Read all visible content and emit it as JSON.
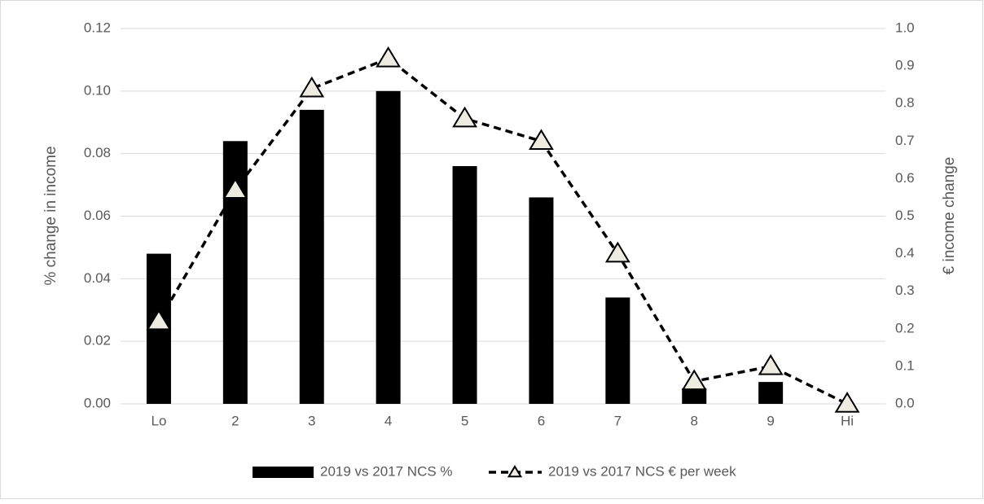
{
  "chart_data": {
    "type": "bar_line",
    "categories": [
      "Lo",
      "2",
      "3",
      "4",
      "5",
      "6",
      "7",
      "8",
      "9",
      "Hi"
    ],
    "y_label": "% change in income",
    "y2_label": "€ income change",
    "ylim": [
      0,
      0.12
    ],
    "yticks": [
      {
        "value": 0,
        "label": "0.00"
      },
      0.02,
      0.04,
      0.06,
      0.08,
      {
        "value": 0.1,
        "label": "0.10"
      },
      0.12
    ],
    "y2lim": [
      0,
      1.0
    ],
    "y2ticks": [
      {
        "value": 0,
        "label": "0.0"
      },
      0.1,
      0.2,
      0.3,
      0.4,
      0.5,
      0.6,
      0.7,
      0.8,
      0.9,
      {
        "value": 1,
        "label": "1.0"
      }
    ],
    "grid": true,
    "legend": "bottom",
    "series": [
      {
        "name": "2019 vs 2017 NCS %",
        "type": "bar",
        "color": "#000000",
        "values": [
          0.048,
          0.084,
          0.094,
          0.1,
          0.076,
          0.066,
          0.034,
          0.005,
          0.007,
          0
        ]
      },
      {
        "name": "2019 vs 2017 NCS € per week",
        "type": "line",
        "axis": "y2",
        "color": "#000000",
        "marker_color": "#eeece1",
        "values": [
          0.22,
          0.57,
          0.84,
          0.92,
          0.76,
          0.7,
          0.4,
          0.06,
          0.1,
          0.0
        ]
      }
    ]
  }
}
